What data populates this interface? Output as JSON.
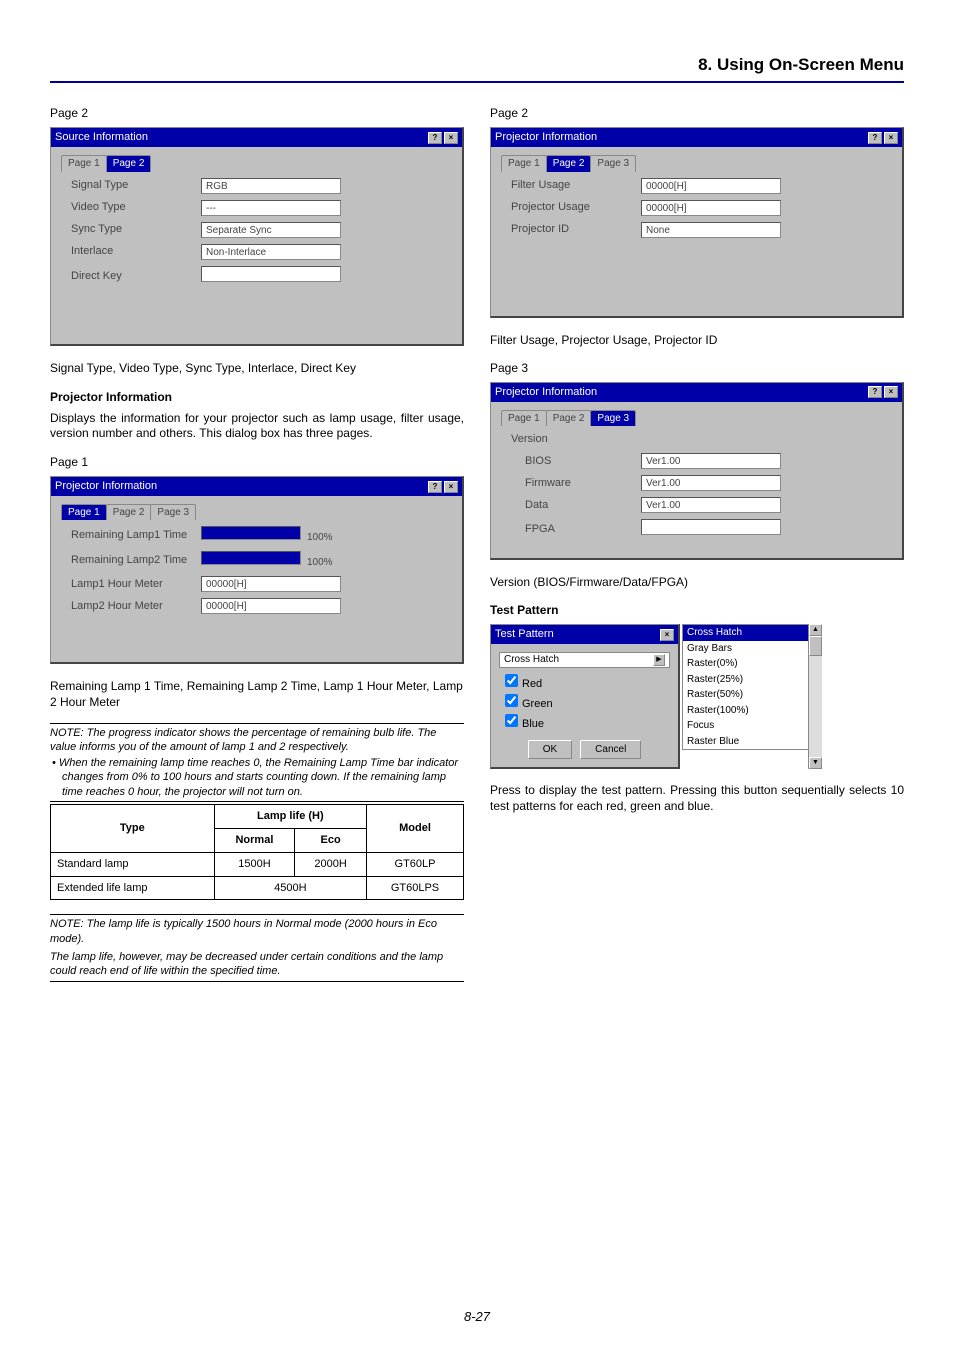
{
  "header": "8. Using On-Screen Menu",
  "footer": "8-27",
  "left": {
    "p2_label": "Page 2",
    "dlg1": {
      "title": "Source Information",
      "tabs": [
        "Page 1",
        "Page 2"
      ],
      "active_tab": 1,
      "rows": [
        {
          "label": "Signal Type",
          "val": "RGB"
        },
        {
          "label": "Video Type",
          "val": "---"
        },
        {
          "label": "Sync Type",
          "val": "Separate Sync"
        },
        {
          "label": "Interlace",
          "val": "Non-Interlace"
        },
        {
          "label": "Direct Key",
          "val": ""
        }
      ]
    },
    "caption1": "Signal Type, Video Type, Sync Type, Interlace, Direct Key",
    "sub_head": "Projector Information",
    "sub_text": "Displays the information for your projector such as lamp usage, filter usage, version number and others. This dialog box has three pages.",
    "p1_label": "Page 1",
    "dlg2": {
      "title": "Projector Information",
      "tabs": [
        "Page 1",
        "Page 2",
        "Page 3"
      ],
      "active_tab": 0,
      "rows": [
        {
          "label": "Remaining Lamp1 Time",
          "prog": 100,
          "txt": "100%"
        },
        {
          "label": "Remaining Lamp2 Time",
          "prog": 100,
          "txt": "100%"
        },
        {
          "label": "Lamp1 Hour Meter",
          "val": "00000[H]"
        },
        {
          "label": "Lamp2 Hour Meter",
          "val": "00000[H]"
        }
      ]
    },
    "caption2": "Remaining Lamp 1 Time, Remaining Lamp 2 Time, Lamp 1 Hour Meter, Lamp 2 Hour Meter",
    "note1": "NOTE: The progress indicator shows the percentage of remaining bulb life. The value informs you of the amount of lamp 1 and 2 respectively.",
    "bullet1": "• When the remaining lamp time reaches 0, the Remaining Lamp Time bar indicator changes from 0% to 100 hours and starts counting down. If the remaining lamp time reaches 0 hour, the projector will not turn on.",
    "table": {
      "head": [
        "Type",
        "Lamp life (H)",
        "Model"
      ],
      "sub": [
        "Normal",
        "Eco"
      ],
      "rows": [
        [
          "Standard lamp",
          "1500H",
          "2000H",
          "GT60LP"
        ],
        [
          "Extended life lamp",
          "4500H",
          "GT60LPS"
        ]
      ]
    },
    "note2a": "NOTE: The lamp life is typically 1500 hours in Normal mode (2000 hours in Eco mode).",
    "note2b": "The lamp life, however, may be decreased under certain conditions and the lamp could reach end of life within the specified time."
  },
  "right": {
    "p2_label": "Page 2",
    "dlg1": {
      "title": "Projector Information",
      "tabs": [
        "Page 1",
        "Page 2",
        "Page 3"
      ],
      "active_tab": 1,
      "rows": [
        {
          "label": "Filter Usage",
          "val": "00000[H]"
        },
        {
          "label": "Projector Usage",
          "val": "00000[H]"
        },
        {
          "label": "Projector ID",
          "val": "None"
        }
      ]
    },
    "caption1": "Filter Usage, Projector Usage, Projector ID",
    "p3_label": "Page 3",
    "dlg2": {
      "title": "Projector Information",
      "tabs": [
        "Page 1",
        "Page 2",
        "Page 3"
      ],
      "active_tab": 2,
      "rows": [
        {
          "label": "Version",
          "val": null
        },
        {
          "label": "BIOS",
          "val": "Ver1.00",
          "indent": true
        },
        {
          "label": "Firmware",
          "val": "Ver1.00",
          "indent": true
        },
        {
          "label": "Data",
          "val": "Ver1.00",
          "indent": true
        },
        {
          "label": "FPGA",
          "val": "",
          "indent": true
        }
      ]
    },
    "caption2": "Version (BIOS/Firmware/Data/FPGA)",
    "tp_head": "Test Pattern",
    "tp_dlg": {
      "title": "Test Pattern",
      "sel": "Cross Hatch",
      "checks": [
        "Red",
        "Green",
        "Blue"
      ],
      "ok": "OK",
      "cancel": "Cancel"
    },
    "drop": [
      "Cross Hatch",
      "Gray Bars",
      "Raster(0%)",
      "Raster(25%)",
      "Raster(50%)",
      "Raster(100%)",
      "Focus",
      "Raster Blue"
    ],
    "tp_text": "Press to display the test pattern. Pressing this button sequentially selects 10 test patterns for each red, green and blue."
  }
}
